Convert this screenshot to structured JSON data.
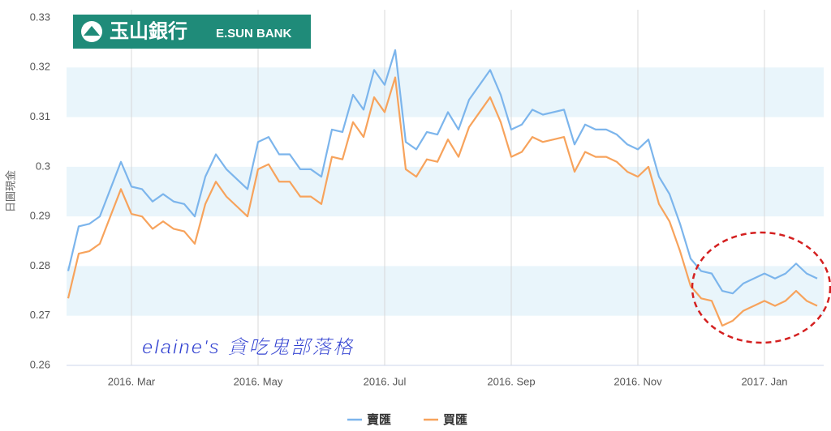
{
  "logo": {
    "name": "玉山銀行",
    "english": "E.SUN BANK"
  },
  "watermark": "elaine's 貪吃鬼部落格",
  "chart_data": {
    "type": "line",
    "ylabel": "日圓現金",
    "categories": [
      null,
      null,
      null,
      null,
      null,
      null,
      "2016. Mar",
      null,
      null,
      null,
      null,
      null,
      null,
      null,
      null,
      null,
      null,
      null,
      "2016. May",
      null,
      null,
      null,
      null,
      null,
      null,
      null,
      null,
      null,
      null,
      null,
      "2016. Jul",
      null,
      null,
      null,
      null,
      null,
      null,
      null,
      null,
      null,
      null,
      null,
      "2016. Sep",
      null,
      null,
      null,
      null,
      null,
      null,
      null,
      null,
      null,
      null,
      null,
      "2016. Nov",
      null,
      null,
      null,
      null,
      null,
      null,
      null,
      null,
      null,
      null,
      null,
      "2017. Jan",
      null,
      null,
      null,
      null,
      null
    ],
    "series": [
      {
        "name": "賣匯",
        "color": "#7cb5ec",
        "values": [
          0.279,
          0.288,
          0.2885,
          0.29,
          0.2955,
          0.301,
          0.296,
          0.2955,
          0.293,
          0.2945,
          0.293,
          0.2925,
          0.29,
          0.298,
          0.3025,
          0.2995,
          0.2975,
          0.2955,
          0.305,
          0.306,
          0.3025,
          0.3025,
          0.2995,
          0.2995,
          0.298,
          0.3075,
          0.307,
          0.3145,
          0.3115,
          0.3195,
          0.3165,
          0.3235,
          0.305,
          0.3035,
          0.307,
          0.3065,
          0.311,
          0.3075,
          0.3135,
          0.3165,
          0.3195,
          0.3145,
          0.3075,
          0.3085,
          0.3115,
          0.3105,
          0.311,
          0.3115,
          0.3045,
          0.3085,
          0.3075,
          0.3075,
          0.3065,
          0.3045,
          0.3035,
          0.3055,
          0.298,
          0.2945,
          0.2885,
          0.2815,
          0.279,
          0.2785,
          0.275,
          0.2745,
          0.2765,
          0.2775,
          0.2785,
          0.2775,
          0.2785,
          0.2805,
          0.2785,
          0.2775
        ]
      },
      {
        "name": "買匯",
        "color": "#f7a35c",
        "values": [
          0.2735,
          0.2825,
          0.283,
          0.2845,
          0.29,
          0.2955,
          0.2905,
          0.29,
          0.2875,
          0.289,
          0.2875,
          0.287,
          0.2845,
          0.2925,
          0.297,
          0.294,
          0.292,
          0.29,
          0.2995,
          0.3005,
          0.297,
          0.297,
          0.294,
          0.294,
          0.2925,
          0.302,
          0.3015,
          0.309,
          0.306,
          0.314,
          0.311,
          0.318,
          0.2995,
          0.298,
          0.3015,
          0.301,
          0.3055,
          0.302,
          0.308,
          0.311,
          0.314,
          0.309,
          0.302,
          0.303,
          0.306,
          0.305,
          0.3055,
          0.306,
          0.299,
          0.303,
          0.302,
          0.302,
          0.301,
          0.299,
          0.298,
          0.3,
          0.2925,
          0.289,
          0.283,
          0.276,
          0.2735,
          0.273,
          0.268,
          0.269,
          0.271,
          0.272,
          0.273,
          0.272,
          0.273,
          0.275,
          0.273,
          0.272
        ]
      }
    ],
    "ylim": [
      0.26,
      0.33
    ],
    "yticks": [
      0.26,
      0.27,
      0.28,
      0.29,
      0.3,
      0.31,
      0.32,
      0.33
    ],
    "grid": true,
    "bands": true,
    "legend": "bottom"
  }
}
